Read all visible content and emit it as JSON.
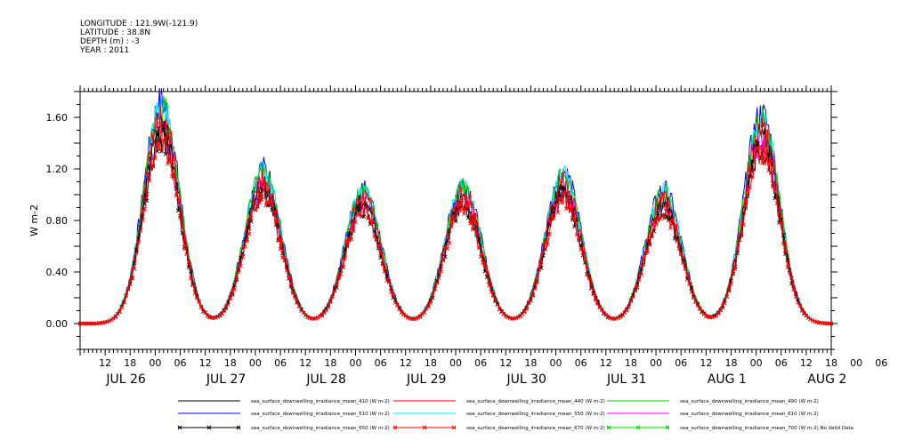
{
  "header": {
    "longitude": "LONGITUDE : 121.9W(-121.9)",
    "latitude": "LATITUDE : 38.8N",
    "depth": "DEPTH (m) : -3",
    "year": "YEAR : 2011"
  },
  "chart_data": {
    "type": "line",
    "title": "",
    "xlabel": "",
    "ylabel": "W m-2",
    "ylim": [
      -0.2,
      1.8
    ],
    "xlim_hours": [
      0,
      180
    ],
    "y_ticks": [
      "0.00",
      "0.40",
      "0.80",
      "1.20",
      "1.60"
    ],
    "y_tick_values": [
      0,
      0.4,
      0.8,
      1.2,
      1.6
    ],
    "x_hour_labels": [
      "12",
      "18",
      "00",
      "06",
      "12",
      "18",
      "00",
      "06",
      "12",
      "18",
      "00",
      "06",
      "12",
      "18",
      "00",
      "06",
      "12",
      "18",
      "00",
      "06",
      "12",
      "18",
      "00",
      "06",
      "12",
      "18",
      "00",
      "06",
      "12",
      "18",
      "00",
      "06"
    ],
    "x_day_labels": [
      "JUL 26",
      "JUL 27",
      "JUL 28",
      "JUL 29",
      "JUL 30",
      "JUL 31",
      "AUG  1",
      "AUG  2"
    ],
    "daily_peaks": {
      "hours_from_start": [
        19.5,
        43.8,
        67.8,
        91.8,
        115.8,
        139.8,
        163.3
      ],
      "values_blue_510": [
        1.72,
        1.21,
        1.05,
        1.09,
        1.18,
        1.04,
        1.62
      ],
      "values_red_670": [
        1.43,
        0.98,
        0.86,
        0.83,
        0.97,
        0.9,
        1.4
      ]
    },
    "series": [
      {
        "name": "sea_surface_downwelling_irradiance_mean_410 (W m-2)",
        "color": "#000000",
        "marker": "none",
        "scale": 0.9
      },
      {
        "name": "sea_surface_downwelling_irradiance_mean_440 (W m-2)",
        "color": "#ff0000",
        "marker": "none",
        "scale": 0.93
      },
      {
        "name": "sea_surface_downwelling_irradiance_mean_490 (W m-2)",
        "color": "#00cc00",
        "marker": "none",
        "scale": 0.97
      },
      {
        "name": "sea_surface_downwelling_irradiance_mean_510 (W m-2)",
        "color": "#0000ff",
        "marker": "none",
        "scale": 1.0
      },
      {
        "name": "sea_surface_downwelling_irradiance_mean_550 (W m-2)",
        "color": "#00e5ff",
        "marker": "none",
        "scale": 0.98
      },
      {
        "name": "sea_surface_downwelling_irradiance_mean_610 (W m-2)",
        "color": "#ff00ff",
        "marker": "none",
        "scale": 0.88
      },
      {
        "name": "sea_surface_downwelling_irradiance_mean_650 (W m-2)",
        "color": "#000000",
        "marker": "x",
        "scale": 0.84
      },
      {
        "name": "sea_surface_downwelling_irradiance_mean_670 (W m-2)",
        "color": "#ff0000",
        "marker": "x",
        "scale": 0.83
      },
      {
        "name": "sea_surface_downwelling_irradiance_mean_700 (W m-2) No Valid Data",
        "color": "#00cc00",
        "marker": "x",
        "scale": 0
      }
    ]
  }
}
